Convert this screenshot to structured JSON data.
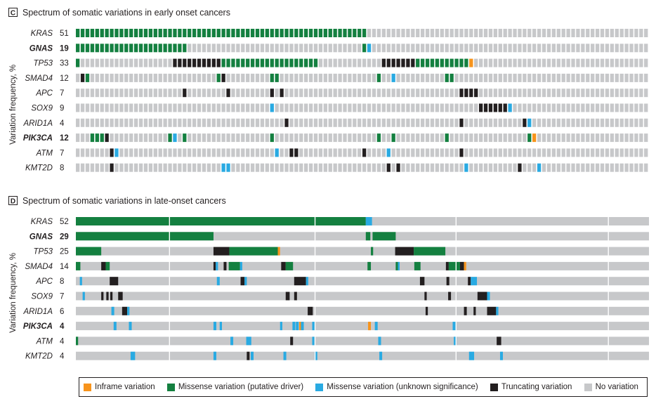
{
  "colors": {
    "inframe": "#f7941d",
    "missense_driver": "#148040",
    "missense_unknown": "#29aae2",
    "truncating": "#231f20",
    "none": "#c7c8ca"
  },
  "legend": [
    {
      "key": "inframe",
      "label": "Inframe variation"
    },
    {
      "key": "missense_driver",
      "label": "Missense variation (putative driver)"
    },
    {
      "key": "missense_unknown",
      "label": "Missense variation (unknown significance)"
    },
    {
      "key": "truncating",
      "label": "Truncating variation"
    },
    {
      "key": "none",
      "label": "No variation"
    }
  ],
  "chart_data": [
    {
      "type": "heatmap",
      "panel_letter": "C",
      "title": "Spectrum of somatic variations in early onset cancers",
      "ylabel": "Variation frequency, %",
      "n_samples": 118,
      "group_breaks": [],
      "genes": [
        {
          "name": "KRAS",
          "freq": "51",
          "bold": false,
          "cells": [
            [
              0,
              59,
              "D"
            ]
          ]
        },
        {
          "name": "GNAS",
          "freq": "19",
          "bold": true,
          "cells": [
            [
              0,
              22,
              "D"
            ],
            [
              59,
              59,
              "D"
            ],
            [
              60,
              60,
              "U"
            ]
          ]
        },
        {
          "name": "TP53",
          "freq": "33",
          "bold": false,
          "cells": [
            [
              0,
              0,
              "D"
            ],
            [
              20,
              29,
              "T"
            ],
            [
              30,
              49,
              "D"
            ],
            [
              63,
              69,
              "T"
            ],
            [
              70,
              80,
              "D"
            ],
            [
              81,
              81,
              "I"
            ]
          ]
        },
        {
          "name": "SMAD4",
          "freq": "12",
          "bold": false,
          "cells": [
            [
              1,
              1,
              "T"
            ],
            [
              2,
              2,
              "D"
            ],
            [
              29,
              29,
              "D"
            ],
            [
              30,
              30,
              "T"
            ],
            [
              40,
              41,
              "D"
            ],
            [
              62,
              62,
              "D"
            ],
            [
              65,
              65,
              "U"
            ],
            [
              76,
              77,
              "D"
            ]
          ]
        },
        {
          "name": "APC",
          "freq": "7",
          "bold": false,
          "cells": [
            [
              22,
              22,
              "T"
            ],
            [
              31,
              31,
              "T"
            ],
            [
              40,
              40,
              "T"
            ],
            [
              42,
              42,
              "T"
            ],
            [
              79,
              82,
              "T"
            ]
          ]
        },
        {
          "name": "SOX9",
          "freq": "9",
          "bold": false,
          "cells": [
            [
              40,
              40,
              "U"
            ],
            [
              83,
              88,
              "T"
            ],
            [
              89,
              89,
              "U"
            ]
          ]
        },
        {
          "name": "ARID1A",
          "freq": "4",
          "bold": false,
          "cells": [
            [
              43,
              43,
              "T"
            ],
            [
              79,
              79,
              "T"
            ],
            [
              92,
              92,
              "T"
            ],
            [
              93,
              93,
              "U"
            ]
          ]
        },
        {
          "name": "PIK3CA",
          "freq": "12",
          "bold": true,
          "cells": [
            [
              3,
              5,
              "D"
            ],
            [
              6,
              6,
              "T"
            ],
            [
              19,
              19,
              "D"
            ],
            [
              20,
              20,
              "U"
            ],
            [
              22,
              22,
              "D"
            ],
            [
              40,
              40,
              "D"
            ],
            [
              62,
              62,
              "D"
            ],
            [
              65,
              65,
              "D"
            ],
            [
              76,
              76,
              "D"
            ],
            [
              93,
              93,
              "D"
            ],
            [
              94,
              94,
              "I"
            ]
          ]
        },
        {
          "name": "ATM",
          "freq": "7",
          "bold": false,
          "cells": [
            [
              7,
              7,
              "T"
            ],
            [
              8,
              8,
              "U"
            ],
            [
              41,
              41,
              "U"
            ],
            [
              44,
              45,
              "T"
            ],
            [
              59,
              59,
              "T"
            ],
            [
              64,
              64,
              "U"
            ],
            [
              79,
              79,
              "T"
            ]
          ]
        },
        {
          "name": "KMT2D",
          "freq": "8",
          "bold": false,
          "cells": [
            [
              7,
              7,
              "T"
            ],
            [
              30,
              31,
              "U"
            ],
            [
              64,
              64,
              "T"
            ],
            [
              66,
              66,
              "T"
            ],
            [
              80,
              80,
              "U"
            ],
            [
              91,
              91,
              "T"
            ],
            [
              95,
              95,
              "U"
            ]
          ]
        }
      ]
    },
    {
      "type": "heatmap",
      "panel_letter": "D",
      "title": "Spectrum of somatic variations in late-onset cancers",
      "ylabel": "Variation frequency, %",
      "n_samples": 1016,
      "group_breaks": [
        166,
        424,
        674,
        944
      ],
      "genes": [
        {
          "name": "KRAS",
          "freq": "52",
          "bold": false,
          "cells": [
            [
              0,
              513,
              "D"
            ],
            [
              514,
              524,
              "U"
            ]
          ]
        },
        {
          "name": "GNAS",
          "freq": "29",
          "bold": true,
          "cells": [
            [
              0,
              243,
              "D"
            ],
            [
              514,
              521,
              "D"
            ],
            [
              526,
              566,
              "D"
            ]
          ]
        },
        {
          "name": "TP53",
          "freq": "25",
          "bold": false,
          "cells": [
            [
              0,
              44,
              "D"
            ],
            [
              244,
              271,
              "T"
            ],
            [
              272,
              357,
              "D"
            ],
            [
              358,
              361,
              "I"
            ],
            [
              523,
              526,
              "D"
            ],
            [
              566,
              598,
              "T"
            ],
            [
              599,
              654,
              "D"
            ]
          ]
        },
        {
          "name": "SMAD4",
          "freq": "14",
          "bold": false,
          "cells": [
            [
              0,
              7,
              "D"
            ],
            [
              45,
              52,
              "T"
            ],
            [
              53,
              59,
              "D"
            ],
            [
              244,
              247,
              "T"
            ],
            [
              248,
              251,
              "U"
            ],
            [
              262,
              266,
              "T"
            ],
            [
              271,
              290,
              "D"
            ],
            [
              291,
              294,
              "U"
            ],
            [
              364,
              371,
              "T"
            ],
            [
              372,
              384,
              "D"
            ],
            [
              517,
              522,
              "D"
            ],
            [
              567,
              570,
              "D"
            ],
            [
              571,
              573,
              "U"
            ],
            [
              600,
              610,
              "D"
            ],
            [
              656,
              660,
              "T"
            ],
            [
              661,
              680,
              "D"
            ],
            [
              681,
              687,
              "T"
            ],
            [
              688,
              691,
              "I"
            ]
          ]
        },
        {
          "name": "APC",
          "freq": "8",
          "bold": false,
          "cells": [
            [
              7,
              10,
              "U"
            ],
            [
              60,
              74,
              "T"
            ],
            [
              250,
              254,
              "U"
            ],
            [
              292,
              298,
              "T"
            ],
            [
              299,
              302,
              "U"
            ],
            [
              387,
              407,
              "T"
            ],
            [
              408,
              411,
              "U"
            ],
            [
              610,
              617,
              "T"
            ],
            [
              657,
              661,
              "T"
            ],
            [
              695,
              699,
              "T"
            ],
            [
              700,
              710,
              "U"
            ]
          ]
        },
        {
          "name": "SOX9",
          "freq": "7",
          "bold": false,
          "cells": [
            [
              12,
              15,
              "U"
            ],
            [
              45,
              48,
              "T"
            ],
            [
              54,
              57,
              "T"
            ],
            [
              61,
              64,
              "T"
            ],
            [
              75,
              82,
              "T"
            ],
            [
              372,
              378,
              "T"
            ],
            [
              387,
              391,
              "T"
            ],
            [
              618,
              621,
              "T"
            ],
            [
              660,
              664,
              "T"
            ],
            [
              712,
              728,
              "T"
            ],
            [
              729,
              733,
              "U"
            ]
          ]
        },
        {
          "name": "ARID1A",
          "freq": "6",
          "bold": false,
          "cells": [
            [
              63,
              67,
              "U"
            ],
            [
              82,
              90,
              "T"
            ],
            [
              91,
              94,
              "U"
            ],
            [
              411,
              419,
              "T"
            ],
            [
              620,
              623,
              "T"
            ],
            [
              688,
              692,
              "T"
            ],
            [
              705,
              708,
              "T"
            ],
            [
              729,
              744,
              "T"
            ],
            [
              745,
              748,
              "U"
            ]
          ]
        },
        {
          "name": "PIK3CA",
          "freq": "4",
          "bold": true,
          "cells": [
            [
              67,
              71,
              "U"
            ],
            [
              94,
              98,
              "U"
            ],
            [
              244,
              248,
              "U"
            ],
            [
              255,
              258,
              "U"
            ],
            [
              362,
              365,
              "U"
            ],
            [
              384,
              388,
              "U"
            ],
            [
              390,
              394,
              "U"
            ],
            [
              396,
              398,
              "I"
            ],
            [
              399,
              403,
              "U"
            ],
            [
              419,
              423,
              "U"
            ],
            [
              518,
              522,
              "I"
            ],
            [
              530,
              534,
              "U"
            ],
            [
              668,
              672,
              "U"
            ]
          ]
        },
        {
          "name": "ATM",
          "freq": "4",
          "bold": false,
          "cells": [
            [
              0,
              3,
              "D"
            ],
            [
              274,
              278,
              "U"
            ],
            [
              302,
              310,
              "U"
            ],
            [
              380,
              384,
              "T"
            ],
            [
              419,
              422,
              "U"
            ],
            [
              536,
              540,
              "U"
            ],
            [
              670,
              674,
              "U"
            ],
            [
              746,
              753,
              "T"
            ]
          ]
        },
        {
          "name": "KMT2D",
          "freq": "4",
          "bold": false,
          "cells": [
            [
              97,
              104,
              "U"
            ],
            [
              244,
              248,
              "U"
            ],
            [
              303,
              307,
              "T"
            ],
            [
              310,
              314,
              "U"
            ],
            [
              368,
              372,
              "U"
            ],
            [
              423,
              427,
              "U"
            ],
            [
              538,
              542,
              "U"
            ],
            [
              697,
              705,
              "U"
            ],
            [
              752,
              756,
              "U"
            ]
          ]
        }
      ]
    }
  ]
}
